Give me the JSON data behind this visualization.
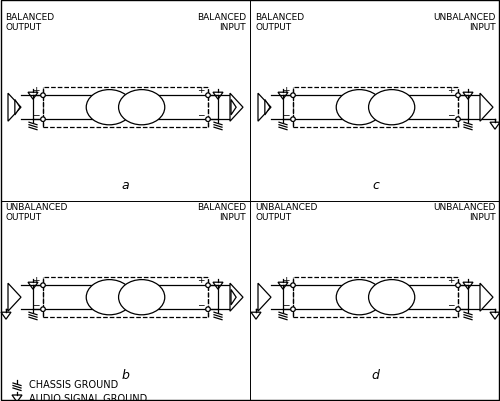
{
  "panels": [
    {
      "label": "a",
      "left_label": "BALANCED\nOUTPUT",
      "right_label": "BALANCED\nINPUT",
      "left_balanced": true,
      "right_balanced": true,
      "ox": 3,
      "oy": 205
    },
    {
      "label": "c",
      "left_label": "BALANCED\nOUTPUT",
      "right_label": "UNBALANCED\nINPUT",
      "left_balanced": true,
      "right_balanced": false,
      "ox": 253,
      "oy": 205
    },
    {
      "label": "b",
      "left_label": "UNBALANCED\nOUTPUT",
      "right_label": "BALANCED\nINPUT",
      "left_balanced": false,
      "right_balanced": true,
      "ox": 3,
      "oy": 15
    },
    {
      "label": "d",
      "left_label": "UNBALANCED\nOUTPUT",
      "right_label": "UNBALANCED\nINPUT",
      "left_balanced": false,
      "right_balanced": false,
      "ox": 253,
      "oy": 15
    }
  ],
  "lc": "#000000",
  "bg": "#ffffff"
}
